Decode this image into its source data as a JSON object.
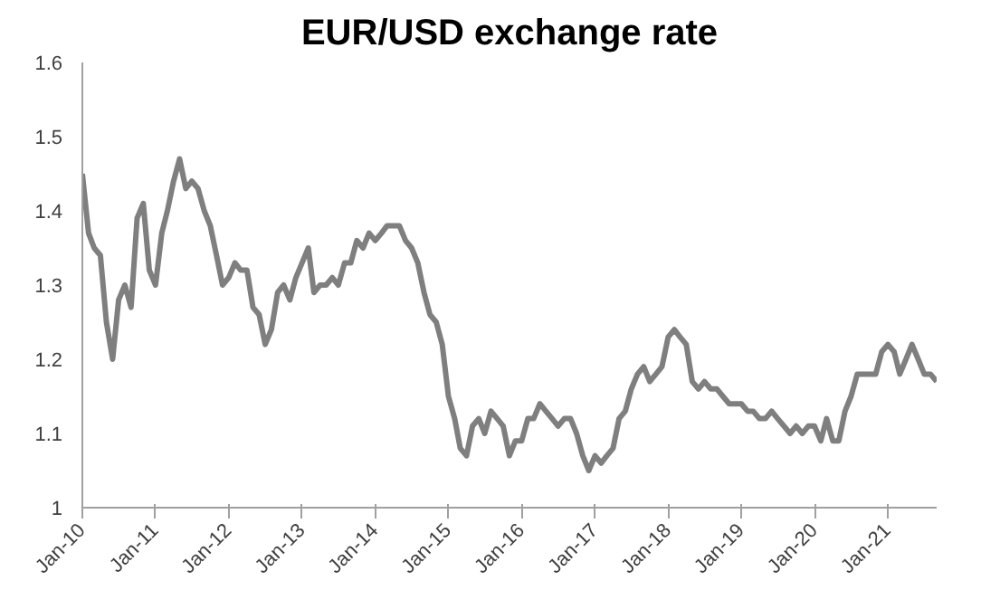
{
  "chart_data": {
    "type": "line",
    "title": "EUR/USD exchange rate",
    "x": [
      "2010-01",
      "2010-02",
      "2010-03",
      "2010-04",
      "2010-05",
      "2010-06",
      "2010-07",
      "2010-08",
      "2010-09",
      "2010-10",
      "2010-11",
      "2010-12",
      "2011-01",
      "2011-02",
      "2011-03",
      "2011-04",
      "2011-05",
      "2011-06",
      "2011-07",
      "2011-08",
      "2011-09",
      "2011-10",
      "2011-11",
      "2011-12",
      "2012-01",
      "2012-02",
      "2012-03",
      "2012-04",
      "2012-05",
      "2012-06",
      "2012-07",
      "2012-08",
      "2012-09",
      "2012-10",
      "2012-11",
      "2012-12",
      "2013-01",
      "2013-02",
      "2013-03",
      "2013-04",
      "2013-05",
      "2013-06",
      "2013-07",
      "2013-08",
      "2013-09",
      "2013-10",
      "2013-11",
      "2013-12",
      "2014-01",
      "2014-02",
      "2014-03",
      "2014-04",
      "2014-05",
      "2014-06",
      "2014-07",
      "2014-08",
      "2014-09",
      "2014-10",
      "2014-11",
      "2014-12",
      "2015-01",
      "2015-02",
      "2015-03",
      "2015-04",
      "2015-05",
      "2015-06",
      "2015-07",
      "2015-08",
      "2015-09",
      "2015-10",
      "2015-11",
      "2015-12",
      "2016-01",
      "2016-02",
      "2016-03",
      "2016-04",
      "2016-05",
      "2016-06",
      "2016-07",
      "2016-08",
      "2016-09",
      "2016-10",
      "2016-11",
      "2016-12",
      "2017-01",
      "2017-02",
      "2017-03",
      "2017-04",
      "2017-05",
      "2017-06",
      "2017-07",
      "2017-08",
      "2017-09",
      "2017-10",
      "2017-11",
      "2017-12",
      "2018-01",
      "2018-02",
      "2018-03",
      "2018-04",
      "2018-05",
      "2018-06",
      "2018-07",
      "2018-08",
      "2018-09",
      "2018-10",
      "2018-11",
      "2018-12",
      "2019-01",
      "2019-02",
      "2019-03",
      "2019-04",
      "2019-05",
      "2019-06",
      "2019-07",
      "2019-08",
      "2019-09",
      "2019-10",
      "2019-11",
      "2019-12",
      "2020-01",
      "2020-02",
      "2020-03",
      "2020-04",
      "2020-05",
      "2020-06",
      "2020-07",
      "2020-08",
      "2020-09",
      "2020-10",
      "2020-11",
      "2020-12",
      "2021-01",
      "2021-02",
      "2021-03",
      "2021-04",
      "2021-05",
      "2021-06",
      "2021-07",
      "2021-08",
      "2021-09"
    ],
    "series": [
      {
        "color": "#7f7f7f",
        "values": [
          1.45,
          1.37,
          1.35,
          1.34,
          1.25,
          1.2,
          1.28,
          1.3,
          1.27,
          1.39,
          1.41,
          1.32,
          1.3,
          1.37,
          1.4,
          1.44,
          1.47,
          1.43,
          1.44,
          1.43,
          1.4,
          1.38,
          1.34,
          1.3,
          1.31,
          1.33,
          1.32,
          1.32,
          1.27,
          1.26,
          1.22,
          1.24,
          1.29,
          1.3,
          1.28,
          1.31,
          1.33,
          1.35,
          1.29,
          1.3,
          1.3,
          1.31,
          1.3,
          1.33,
          1.33,
          1.36,
          1.35,
          1.37,
          1.36,
          1.37,
          1.38,
          1.38,
          1.38,
          1.36,
          1.35,
          1.33,
          1.29,
          1.26,
          1.25,
          1.22,
          1.15,
          1.12,
          1.08,
          1.07,
          1.11,
          1.12,
          1.1,
          1.13,
          1.12,
          1.11,
          1.07,
          1.09,
          1.09,
          1.12,
          1.12,
          1.14,
          1.13,
          1.12,
          1.11,
          1.12,
          1.12,
          1.1,
          1.07,
          1.05,
          1.07,
          1.06,
          1.07,
          1.08,
          1.12,
          1.13,
          1.16,
          1.18,
          1.19,
          1.17,
          1.18,
          1.19,
          1.23,
          1.24,
          1.23,
          1.22,
          1.17,
          1.16,
          1.17,
          1.16,
          1.16,
          1.15,
          1.14,
          1.14,
          1.14,
          1.13,
          1.13,
          1.12,
          1.12,
          1.13,
          1.12,
          1.11,
          1.1,
          1.11,
          1.1,
          1.11,
          1.11,
          1.09,
          1.12,
          1.09,
          1.09,
          1.13,
          1.15,
          1.18,
          1.18,
          1.18,
          1.18,
          1.21,
          1.22,
          1.21,
          1.18,
          1.2,
          1.22,
          1.2,
          1.18,
          1.18,
          1.17
        ]
      }
    ],
    "xlim": [
      "2010-01",
      "2021-09"
    ],
    "xticks": [
      {
        "value": "2010-01",
        "label": "Jan-10"
      },
      {
        "value": "2011-01",
        "label": "Jan-11"
      },
      {
        "value": "2012-01",
        "label": "Jan-12"
      },
      {
        "value": "2013-01",
        "label": "Jan-13"
      },
      {
        "value": "2014-01",
        "label": "Jan-14"
      },
      {
        "value": "2015-01",
        "label": "Jan-15"
      },
      {
        "value": "2016-01",
        "label": "Jan-16"
      },
      {
        "value": "2017-01",
        "label": "Jan-17"
      },
      {
        "value": "2018-01",
        "label": "Jan-18"
      },
      {
        "value": "2019-01",
        "label": "Jan-19"
      },
      {
        "value": "2020-01",
        "label": "Jan-20"
      },
      {
        "value": "2021-01",
        "label": "Jan-21"
      }
    ],
    "ylim": [
      1,
      1.6
    ],
    "yticks": [
      1,
      1.1,
      1.2,
      1.3,
      1.4,
      1.5,
      1.6
    ],
    "grid": false,
    "marker": "none",
    "line_style": "solid"
  }
}
